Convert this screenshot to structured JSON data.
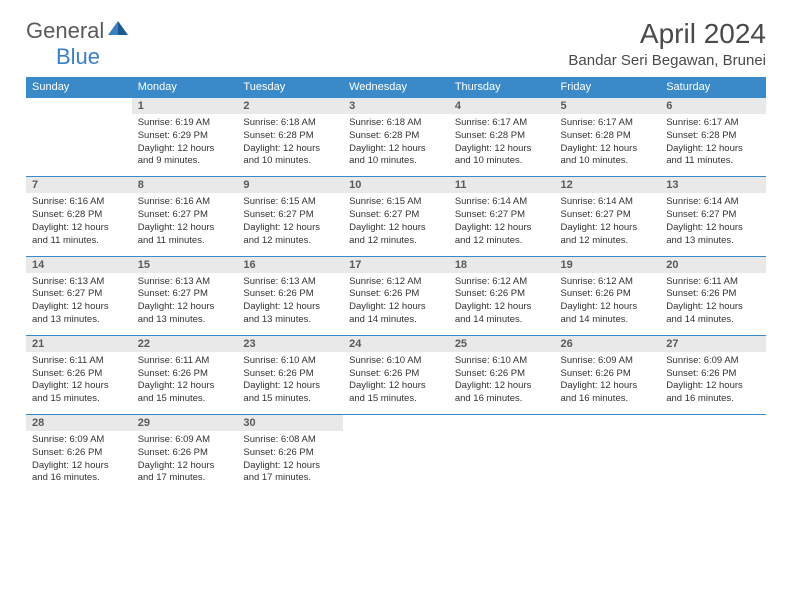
{
  "logo": {
    "part1": "General",
    "part2": "Blue"
  },
  "title": "April 2024",
  "location": "Bandar Seri Begawan, Brunei",
  "colors": {
    "header_bg": "#3a8ac9",
    "header_text": "#ffffff",
    "daynum_bg": "#e9e9e9",
    "daynum_text": "#5a5a5a",
    "body_text": "#333333",
    "rule": "#3a8ac9",
    "logo_gray": "#5a5a5a",
    "logo_blue": "#3a7fc4"
  },
  "fonts": {
    "title_size": 28,
    "location_size": 15,
    "header_size": 11,
    "daynum_size": 11,
    "detail_size": 9.5
  },
  "dayHeaders": [
    "Sunday",
    "Monday",
    "Tuesday",
    "Wednesday",
    "Thursday",
    "Friday",
    "Saturday"
  ],
  "weeks": [
    [
      null,
      {
        "n": "1",
        "sr": "6:19 AM",
        "ss": "6:29 PM",
        "dl": "12 hours and 9 minutes."
      },
      {
        "n": "2",
        "sr": "6:18 AM",
        "ss": "6:28 PM",
        "dl": "12 hours and 10 minutes."
      },
      {
        "n": "3",
        "sr": "6:18 AM",
        "ss": "6:28 PM",
        "dl": "12 hours and 10 minutes."
      },
      {
        "n": "4",
        "sr": "6:17 AM",
        "ss": "6:28 PM",
        "dl": "12 hours and 10 minutes."
      },
      {
        "n": "5",
        "sr": "6:17 AM",
        "ss": "6:28 PM",
        "dl": "12 hours and 10 minutes."
      },
      {
        "n": "6",
        "sr": "6:17 AM",
        "ss": "6:28 PM",
        "dl": "12 hours and 11 minutes."
      }
    ],
    [
      {
        "n": "7",
        "sr": "6:16 AM",
        "ss": "6:28 PM",
        "dl": "12 hours and 11 minutes."
      },
      {
        "n": "8",
        "sr": "6:16 AM",
        "ss": "6:27 PM",
        "dl": "12 hours and 11 minutes."
      },
      {
        "n": "9",
        "sr": "6:15 AM",
        "ss": "6:27 PM",
        "dl": "12 hours and 12 minutes."
      },
      {
        "n": "10",
        "sr": "6:15 AM",
        "ss": "6:27 PM",
        "dl": "12 hours and 12 minutes."
      },
      {
        "n": "11",
        "sr": "6:14 AM",
        "ss": "6:27 PM",
        "dl": "12 hours and 12 minutes."
      },
      {
        "n": "12",
        "sr": "6:14 AM",
        "ss": "6:27 PM",
        "dl": "12 hours and 12 minutes."
      },
      {
        "n": "13",
        "sr": "6:14 AM",
        "ss": "6:27 PM",
        "dl": "12 hours and 13 minutes."
      }
    ],
    [
      {
        "n": "14",
        "sr": "6:13 AM",
        "ss": "6:27 PM",
        "dl": "12 hours and 13 minutes."
      },
      {
        "n": "15",
        "sr": "6:13 AM",
        "ss": "6:27 PM",
        "dl": "12 hours and 13 minutes."
      },
      {
        "n": "16",
        "sr": "6:13 AM",
        "ss": "6:26 PM",
        "dl": "12 hours and 13 minutes."
      },
      {
        "n": "17",
        "sr": "6:12 AM",
        "ss": "6:26 PM",
        "dl": "12 hours and 14 minutes."
      },
      {
        "n": "18",
        "sr": "6:12 AM",
        "ss": "6:26 PM",
        "dl": "12 hours and 14 minutes."
      },
      {
        "n": "19",
        "sr": "6:12 AM",
        "ss": "6:26 PM",
        "dl": "12 hours and 14 minutes."
      },
      {
        "n": "20",
        "sr": "6:11 AM",
        "ss": "6:26 PM",
        "dl": "12 hours and 14 minutes."
      }
    ],
    [
      {
        "n": "21",
        "sr": "6:11 AM",
        "ss": "6:26 PM",
        "dl": "12 hours and 15 minutes."
      },
      {
        "n": "22",
        "sr": "6:11 AM",
        "ss": "6:26 PM",
        "dl": "12 hours and 15 minutes."
      },
      {
        "n": "23",
        "sr": "6:10 AM",
        "ss": "6:26 PM",
        "dl": "12 hours and 15 minutes."
      },
      {
        "n": "24",
        "sr": "6:10 AM",
        "ss": "6:26 PM",
        "dl": "12 hours and 15 minutes."
      },
      {
        "n": "25",
        "sr": "6:10 AM",
        "ss": "6:26 PM",
        "dl": "12 hours and 16 minutes."
      },
      {
        "n": "26",
        "sr": "6:09 AM",
        "ss": "6:26 PM",
        "dl": "12 hours and 16 minutes."
      },
      {
        "n": "27",
        "sr": "6:09 AM",
        "ss": "6:26 PM",
        "dl": "12 hours and 16 minutes."
      }
    ],
    [
      {
        "n": "28",
        "sr": "6:09 AM",
        "ss": "6:26 PM",
        "dl": "12 hours and 16 minutes."
      },
      {
        "n": "29",
        "sr": "6:09 AM",
        "ss": "6:26 PM",
        "dl": "12 hours and 17 minutes."
      },
      {
        "n": "30",
        "sr": "6:08 AM",
        "ss": "6:26 PM",
        "dl": "12 hours and 17 minutes."
      },
      null,
      null,
      null,
      null
    ]
  ],
  "labels": {
    "sunrise": "Sunrise:",
    "sunset": "Sunset:",
    "daylight": "Daylight:"
  }
}
